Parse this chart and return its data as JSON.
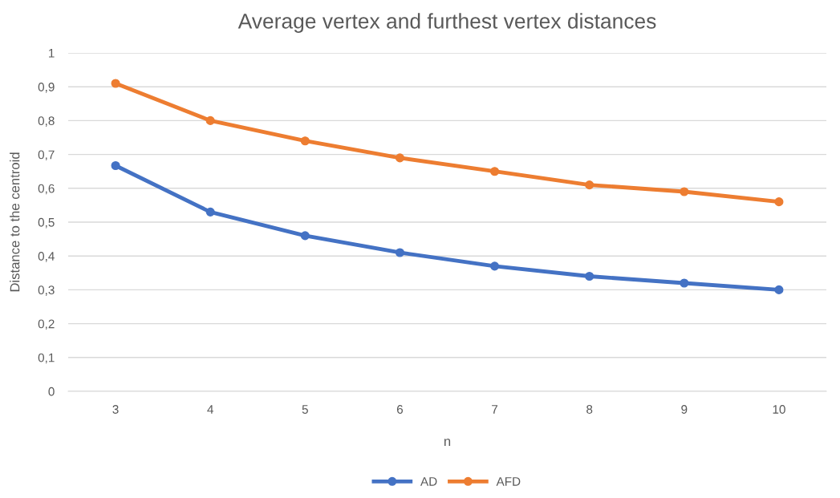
{
  "chart_data": {
    "type": "line",
    "title": "Average vertex and furthest vertex distances",
    "xlabel": "n",
    "ylabel": "Distance to the centroid",
    "categories": [
      "3",
      "4",
      "5",
      "6",
      "7",
      "8",
      "9",
      "10"
    ],
    "series": [
      {
        "name": "AD",
        "color": "#4472c4",
        "values": [
          0.667,
          0.53,
          0.46,
          0.41,
          0.37,
          0.34,
          0.32,
          0.3
        ]
      },
      {
        "name": "AFD",
        "color": "#ed7d31",
        "values": [
          0.91,
          0.8,
          0.74,
          0.69,
          0.65,
          0.61,
          0.59,
          0.56
        ]
      }
    ],
    "ylim": [
      0,
      1
    ],
    "yticks": [
      0,
      {
        "value": 0.1,
        "label": "0,1"
      },
      {
        "value": 0.2,
        "label": "0,2"
      },
      {
        "value": 0.3,
        "label": "0,3"
      },
      {
        "value": 0.4,
        "label": "0,4"
      },
      {
        "value": 0.5,
        "label": "0,5"
      },
      {
        "value": 0.6,
        "label": "0,6"
      },
      {
        "value": 0.7,
        "label": "0,7"
      },
      {
        "value": 0.8,
        "label": "0,8"
      },
      {
        "value": 0.9,
        "label": "0,9"
      },
      1
    ],
    "grid": "y",
    "legend": "bottom",
    "marker": "circle",
    "line_style": "solid"
  }
}
